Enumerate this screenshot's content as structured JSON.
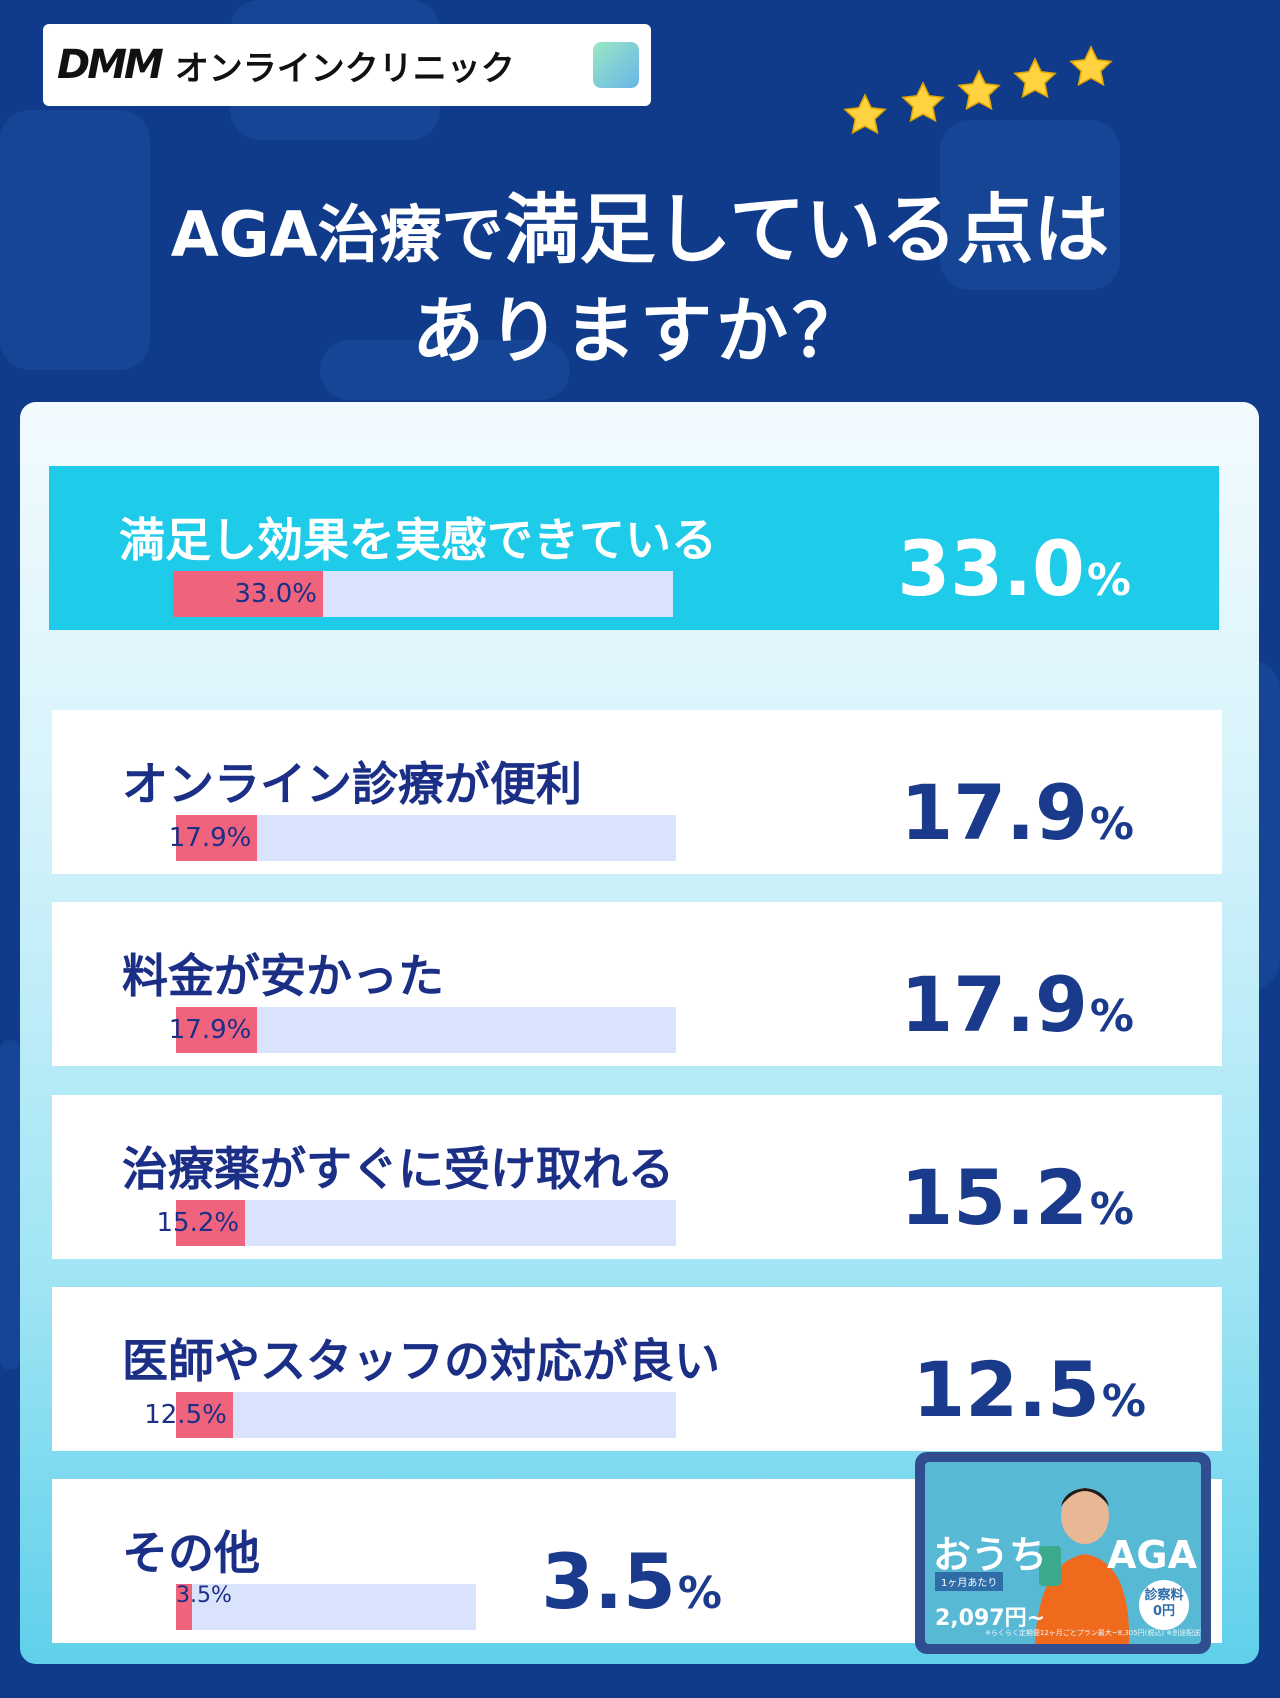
{
  "brand": {
    "logo_text": "DMM",
    "name": "オンラインクリニック"
  },
  "title": {
    "prefix": "AGA治療で",
    "emphasis": "満足している点は",
    "line2": "ありますか？"
  },
  "rating": {
    "stars": 5
  },
  "colors": {
    "background": "#0f3b8a",
    "highlight_row": "#1ecbe9",
    "bar_fill": "#f0637c",
    "bar_track": "#d9e3fb",
    "label_text": "#1b2f86"
  },
  "chart_data": {
    "type": "bar",
    "orientation": "horizontal",
    "title": "AGA治療で満足している点はありますか？",
    "unit": "%",
    "xlim": [
      0,
      100
    ],
    "categories": [
      "満足し効果を実感できている",
      "オンライン診療が便利",
      "料金が安かった",
      "治療薬がすぐに受け取れる",
      "医師やスタッフの対応が良い",
      "その他"
    ],
    "values": [
      33.0,
      17.9,
      17.9,
      15.2,
      12.5,
      3.5
    ],
    "value_labels": [
      "33.0",
      "17.9",
      "17.9",
      "15.2",
      "12.5",
      "3.5"
    ],
    "bar_labels": [
      "33.0%",
      "17.9%",
      "17.9%",
      "15.2%",
      "12.5%",
      "3.5\n%"
    ],
    "highlighted_index": 0
  },
  "unit_symbol": "%",
  "promo": {
    "title_left": "おうち",
    "title_right": "AGA",
    "tag": "1ヶ月あたり",
    "price": "2,097円~",
    "badge": "診察料 0円",
    "note": "※らくらく定期便12ヶ月ごとプラン最大~8,305円(税込) ※別途配送料がかかります"
  }
}
